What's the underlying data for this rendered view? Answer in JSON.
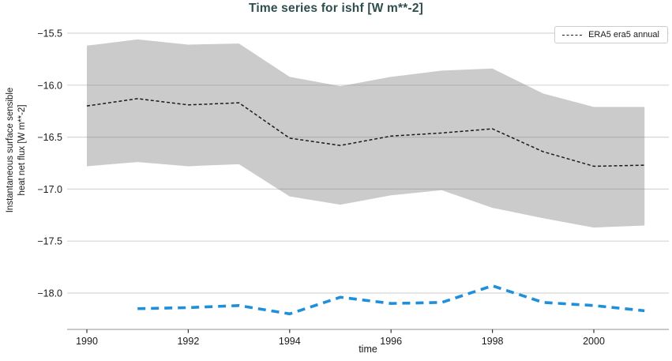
{
  "chart_data": {
    "type": "line",
    "title": "Time series for ishf [W m**-2]",
    "xlabel": "time",
    "ylabel_lines": [
      "Instantaneous surface sensible",
      "heat net flux [W m**-2]"
    ],
    "xlim": [
      1989.6,
      2001.5
    ],
    "ylim": [
      -18.35,
      -15.45
    ],
    "grid": true,
    "x_ticks": {
      "values": [
        1990,
        1992,
        1994,
        1996,
        1998,
        2000
      ],
      "labels": [
        "1990",
        "1992",
        "1994",
        "1996",
        "1998",
        "2000"
      ]
    },
    "y_ticks": {
      "values": [
        -15.5,
        -16.0,
        -16.5,
        -17.0,
        -17.5,
        -18.0
      ],
      "labels": [
        "−15.5",
        "−16.0",
        "−16.5",
        "−17.0",
        "−17.5",
        "−18.0"
      ]
    },
    "legend": {
      "position": "top-right",
      "entries": [
        {
          "label": "ERA5 era5 annual",
          "line_style": "dashed",
          "color": "#1a1a1a"
        }
      ]
    },
    "band": {
      "description": "gray uncertainty envelope around ERA5 era5 annual",
      "color": "#cbcbcb",
      "x": [
        1990,
        1991,
        1992,
        1993,
        1994,
        1995,
        1996,
        1997,
        1998,
        1999,
        2000,
        2001
      ],
      "upper": [
        -15.62,
        -15.56,
        -15.61,
        -15.6,
        -15.92,
        -16.01,
        -15.92,
        -15.86,
        -15.84,
        -16.08,
        -16.21,
        -16.21
      ],
      "lower": [
        -16.78,
        -16.74,
        -16.78,
        -16.76,
        -17.07,
        -17.15,
        -17.06,
        -17.01,
        -17.18,
        -17.28,
        -17.37,
        -17.35
      ]
    },
    "series": [
      {
        "name": "ERA5 era5 annual",
        "color": "#1a1a1a",
        "style": "dashed",
        "width": 1.5,
        "dash": [
          4,
          2.8
        ],
        "x": [
          1990,
          1991,
          1992,
          1993,
          1994,
          1995,
          1996,
          1997,
          1998,
          1999,
          2000,
          2001
        ],
        "values": [
          -16.2,
          -16.13,
          -16.19,
          -16.17,
          -16.51,
          -16.58,
          -16.49,
          -16.46,
          -16.42,
          -16.64,
          -16.78,
          -16.77
        ]
      },
      {
        "name": "",
        "color": "#1f8fdc",
        "style": "dashed",
        "width": 3.6,
        "dash": [
          10,
          7
        ],
        "x": [
          1991,
          1992,
          1993,
          1994,
          1995,
          1996,
          1997,
          1998,
          1999,
          2000,
          2001
        ],
        "values": [
          -18.15,
          -18.14,
          -18.12,
          -18.2,
          -18.04,
          -18.1,
          -18.09,
          -17.93,
          -18.09,
          -18.12,
          -18.17
        ]
      }
    ]
  },
  "colors": {
    "title": "#2e4e4e",
    "grid": "#d8d8d8",
    "axis_line": "#c9c9c9",
    "tick_mark": "#333333",
    "band": "#cbcbcb",
    "legend_border": "#cccccc"
  }
}
